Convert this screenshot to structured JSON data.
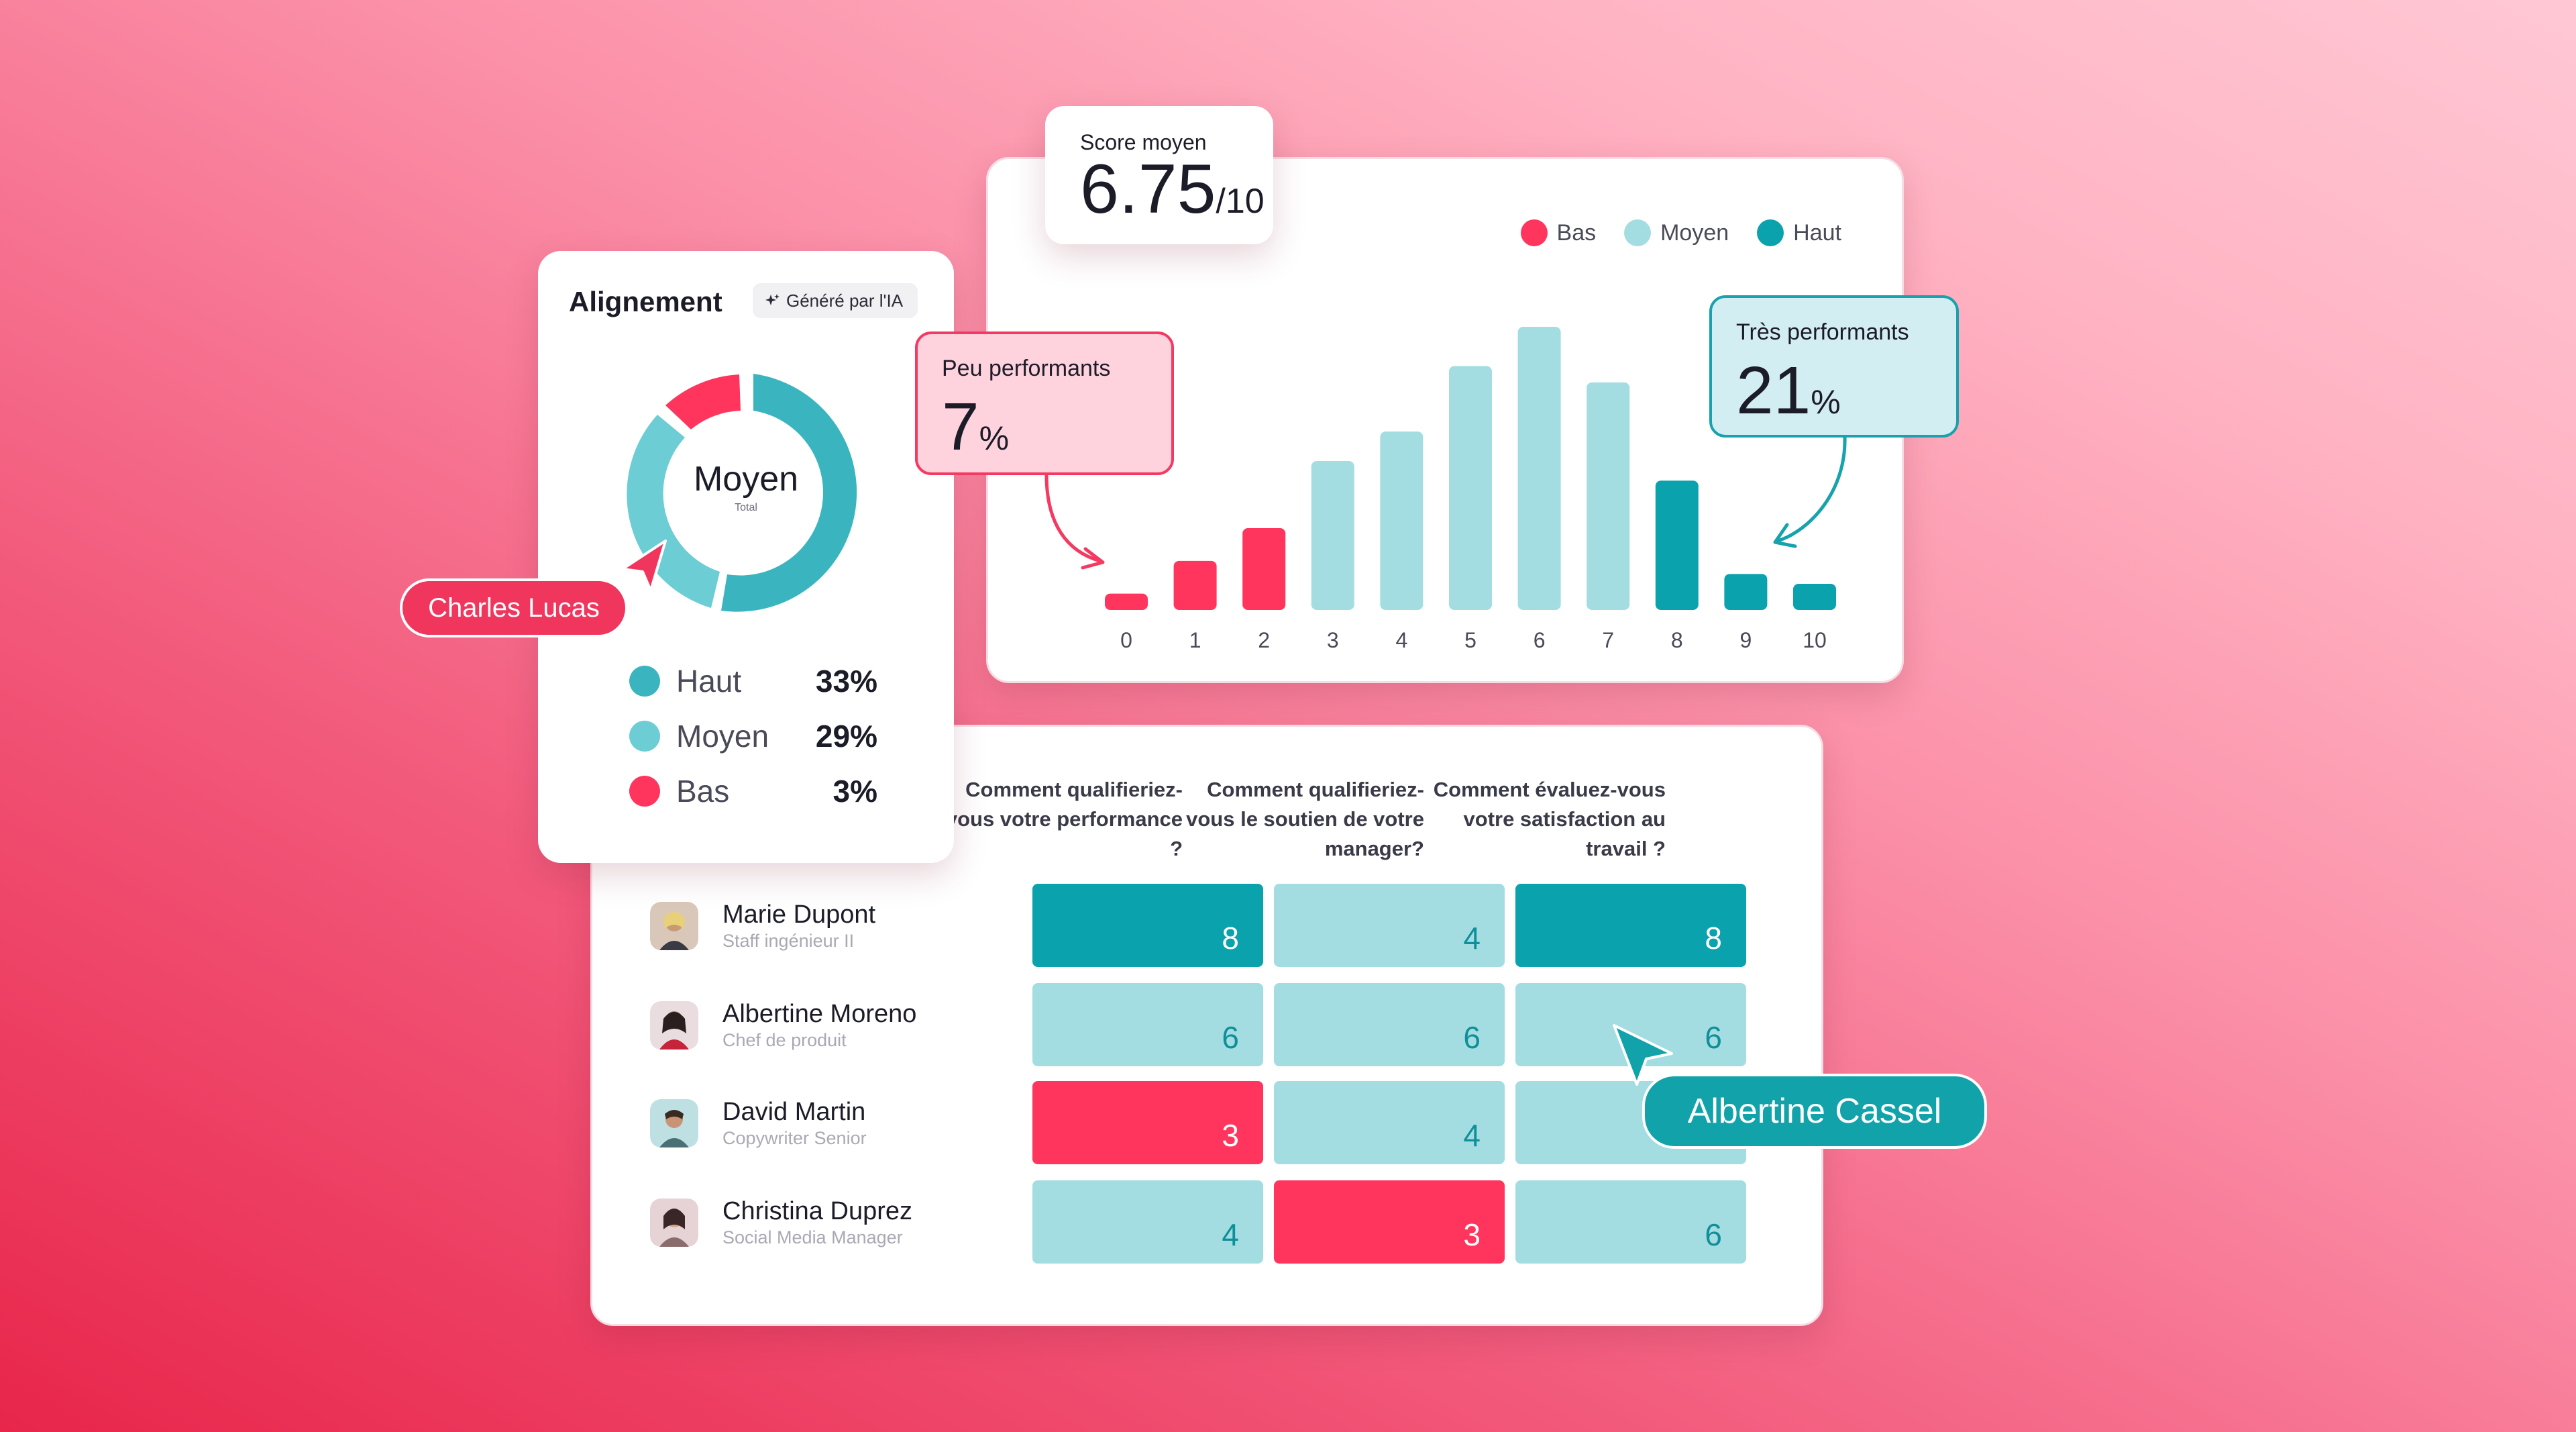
{
  "score": {
    "label": "Score moyen",
    "value": "6.75",
    "max": "/10"
  },
  "legend": [
    {
      "label": "Bas",
      "color": "#ff355d"
    },
    {
      "label": "Moyen",
      "color": "#a3dde1"
    },
    {
      "label": "Haut",
      "color": "#0aa2ad"
    }
  ],
  "callouts": {
    "low": {
      "label": "Peu performants",
      "value": "7",
      "unit": "%"
    },
    "high": {
      "label": "Très performants",
      "value": "21",
      "unit": "%"
    }
  },
  "chart_data": {
    "type": "bar",
    "categories": [
      "0",
      "1",
      "2",
      "3",
      "4",
      "5",
      "6",
      "7",
      "8",
      "9",
      "10"
    ],
    "values": [
      1,
      3,
      5,
      9.1,
      10.9,
      14.9,
      17.3,
      13.9,
      7.9,
      2.2,
      1.6
    ],
    "groups": [
      "Bas",
      "Bas",
      "Bas",
      "Moyen",
      "Moyen",
      "Moyen",
      "Moyen",
      "Moyen",
      "Haut",
      "Haut",
      "Haut"
    ],
    "title": "",
    "xlabel": "",
    "ylabel": "",
    "legend_position": "top-right",
    "grid": false
  },
  "alignment": {
    "title": "Alignement",
    "badge": "Généré par l'IA",
    "center_label": "Moyen",
    "center_sub": "Total",
    "items": [
      {
        "label": "Haut",
        "pct": "33%",
        "color": "#3ab5bf"
      },
      {
        "label": "Moyen",
        "pct": "29%",
        "color": "#6ccdd4"
      },
      {
        "label": "Bas",
        "pct": "3%",
        "color": "#ff355d"
      }
    ]
  },
  "cursors": {
    "charles": "Charles Lucas",
    "albertine": "Albertine Cassel"
  },
  "table": {
    "columns": [
      "Comment qualifieriez-vous votre performance ?",
      "Comment qualifieriez-vous le soutien de votre manager?",
      "Comment évaluez-vous votre satisfaction au travail ?"
    ],
    "rows": [
      {
        "name": "Marie Dupont",
        "role": "Staff ingénieur II",
        "scores": [
          "8",
          "4",
          "8"
        ],
        "levels": [
          "high",
          "mid",
          "high"
        ]
      },
      {
        "name": "Albertine Moreno",
        "role": "Chef de produit",
        "scores": [
          "6",
          "6",
          "6"
        ],
        "levels": [
          "mid",
          "mid",
          "mid"
        ]
      },
      {
        "name": "David Martin",
        "role": "Copywriter Senior",
        "scores": [
          "3",
          "4",
          ""
        ],
        "levels": [
          "low",
          "mid",
          "mid"
        ]
      },
      {
        "name": "Christina Duprez",
        "role": "Social Media Manager",
        "scores": [
          "4",
          "3",
          "6"
        ],
        "levels": [
          "mid",
          "low",
          "mid"
        ]
      }
    ]
  }
}
